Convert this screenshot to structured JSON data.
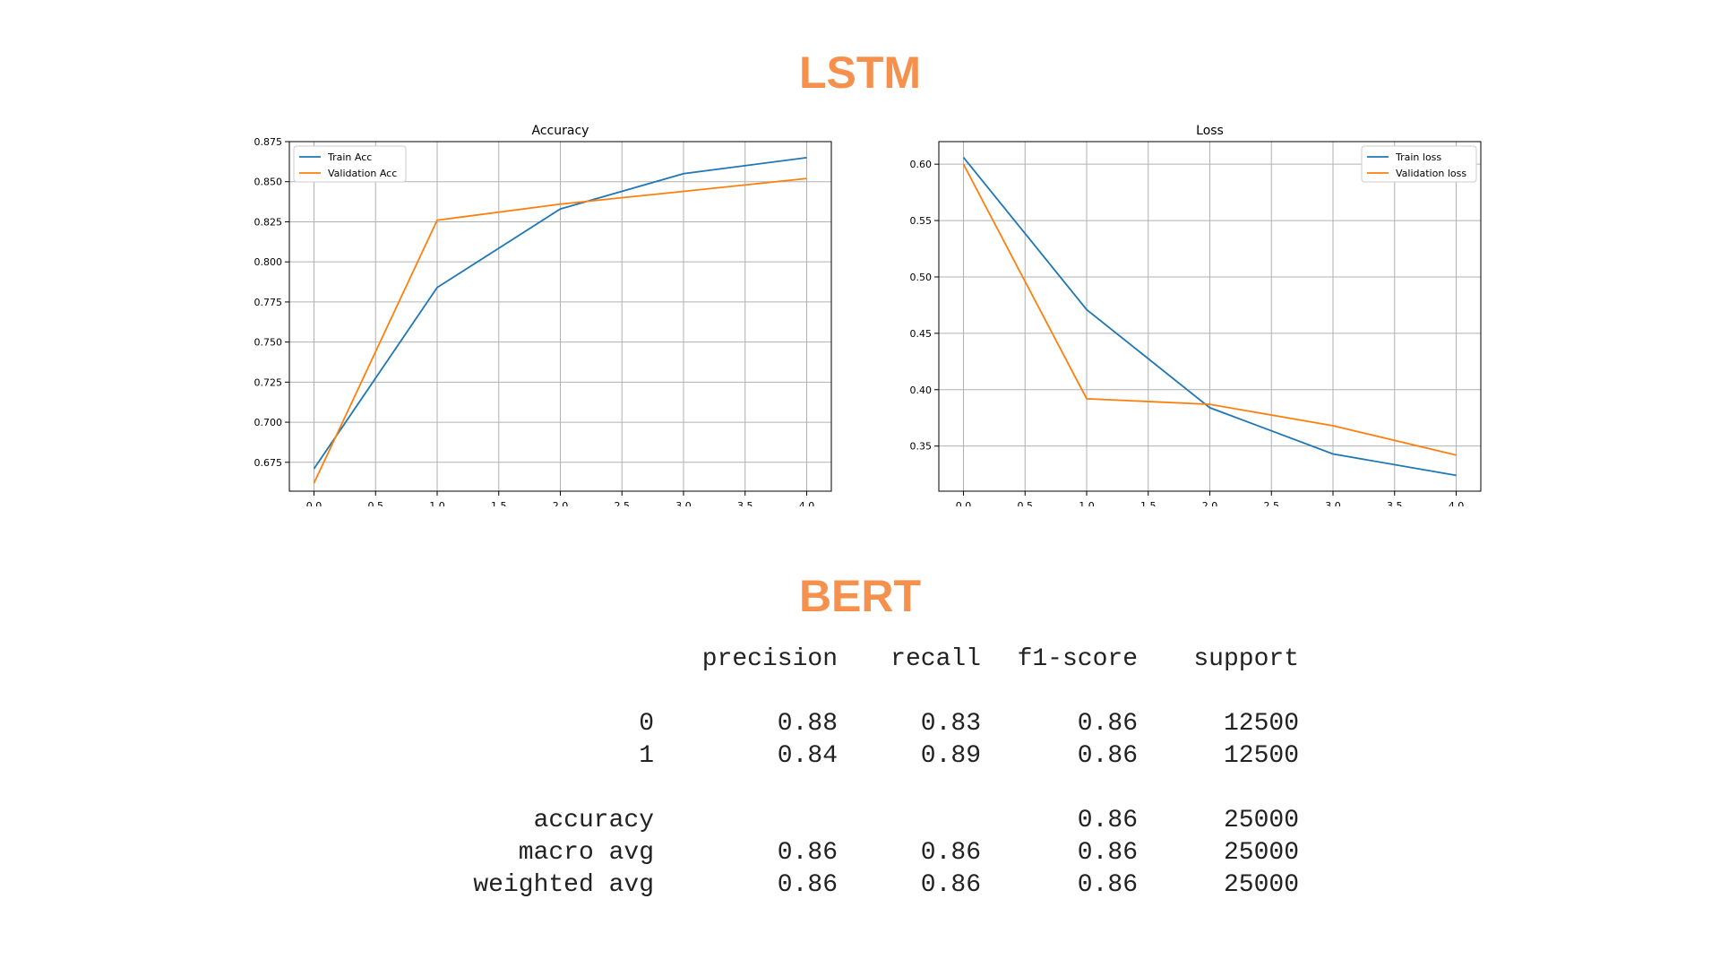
{
  "sections": {
    "lstm_title": "LSTM",
    "bert_title": "BERT"
  },
  "chart_data": [
    {
      "type": "line",
      "title": "Accuracy",
      "xlabel": "",
      "ylabel": "",
      "x": [
        0,
        1,
        2,
        3,
        4
      ],
      "xticks": [
        "0.0",
        "0.5",
        "1.0",
        "1.5",
        "2.0",
        "2.5",
        "3.0",
        "3.5",
        "4.0"
      ],
      "yticks": [
        "0.675",
        "0.700",
        "0.725",
        "0.750",
        "0.775",
        "0.800",
        "0.825",
        "0.850",
        "0.875"
      ],
      "xlim": [
        -0.2,
        4.2
      ],
      "ylim": [
        0.657,
        0.875
      ],
      "grid": true,
      "legend": "upper left",
      "series": [
        {
          "name": "Train Acc",
          "color": "#1f77b4",
          "values": [
            0.671,
            0.784,
            0.833,
            0.855,
            0.865
          ]
        },
        {
          "name": "Validation Acc",
          "color": "#ff7f0e",
          "values": [
            0.662,
            0.826,
            0.836,
            0.844,
            0.852
          ]
        }
      ]
    },
    {
      "type": "line",
      "title": "Loss",
      "xlabel": "",
      "ylabel": "",
      "x": [
        0,
        1,
        2,
        3,
        4
      ],
      "xticks": [
        "0.0",
        "0.5",
        "1.0",
        "1.5",
        "2.0",
        "2.5",
        "3.0",
        "3.5",
        "4.0"
      ],
      "yticks": [
        "0.35",
        "0.40",
        "0.45",
        "0.50",
        "0.55",
        "0.60"
      ],
      "xlim": [
        -0.2,
        4.2
      ],
      "ylim": [
        0.31,
        0.62
      ],
      "grid": true,
      "legend": "upper right",
      "series": [
        {
          "name": "Train loss",
          "color": "#1f77b4",
          "values": [
            0.606,
            0.471,
            0.384,
            0.343,
            0.324
          ]
        },
        {
          "name": "Validation loss",
          "color": "#ff7f0e",
          "values": [
            0.6,
            0.392,
            0.387,
            0.368,
            0.342
          ]
        }
      ]
    }
  ],
  "report": {
    "headers": [
      "",
      "precision",
      "recall",
      "f1-score",
      "support"
    ],
    "rows": [
      [
        "0",
        "0.88",
        "0.83",
        "0.86",
        "12500"
      ],
      [
        "1",
        "0.84",
        "0.89",
        "0.86",
        "12500"
      ],
      [
        "",
        "",
        "",
        "",
        ""
      ],
      [
        "accuracy",
        "",
        "",
        "0.86",
        "25000"
      ],
      [
        "macro avg",
        "0.86",
        "0.86",
        "0.86",
        "25000"
      ],
      [
        "weighted avg",
        "0.86",
        "0.86",
        "0.86",
        "25000"
      ]
    ]
  }
}
